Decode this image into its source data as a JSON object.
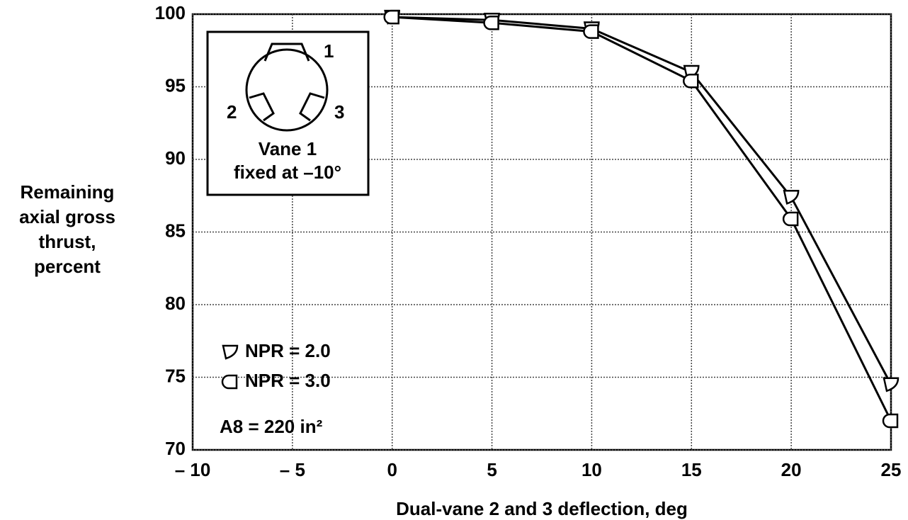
{
  "chart_data": {
    "type": "line",
    "y_label": [
      "Remaining",
      "axial gross",
      "thrust,",
      "percent"
    ],
    "x_label": "Dual-vane 2 and 3 deflection, deg",
    "x": [
      0,
      5,
      10,
      15,
      20,
      25
    ],
    "series": [
      {
        "name": "NPR = 2.0",
        "color": "#000000",
        "values": [
          99.8,
          99.6,
          99.0,
          96.0,
          87.4,
          74.5
        ]
      },
      {
        "name": "NPR = 3.0",
        "color": "#000000",
        "values": [
          99.8,
          99.4,
          98.8,
          95.4,
          85.9,
          72.0
        ]
      }
    ],
    "xlim": [
      -10,
      25
    ],
    "xticks": [
      {
        "value": -10,
        "label": "– 10"
      },
      {
        "value": -5,
        "label": "– 5"
      },
      0,
      5,
      10,
      15,
      20,
      25
    ],
    "ylim": [
      70,
      100
    ],
    "yticks": [
      70,
      75,
      80,
      85,
      90,
      95,
      100
    ],
    "grid": true,
    "annotation": "A8 = 220 in²",
    "inset": {
      "vane_labels": [
        "1",
        "2",
        "3"
      ],
      "caption": [
        "Vane 1",
        "fixed at –10°"
      ]
    }
  }
}
